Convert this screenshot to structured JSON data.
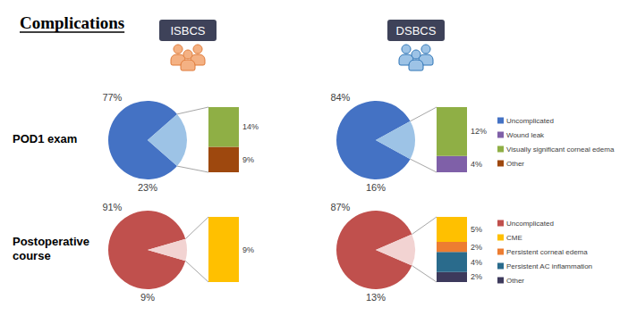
{
  "title": "Complications",
  "groups": [
    "ISBCS",
    "DSBCS"
  ],
  "rows": [
    {
      "label": "POD1 exam",
      "legend": [
        {
          "name": "Uncomplicated",
          "color": "#4472c4"
        },
        {
          "name": "Wound leak",
          "color": "#7f60a8"
        },
        {
          "name": "Visually significant corneal edema",
          "color": "#8faf45"
        },
        {
          "name": "Other",
          "color": "#9e480e"
        }
      ]
    },
    {
      "label": "Postoperative course",
      "legend": [
        {
          "name": "Uncomplicated",
          "color": "#c0504d"
        },
        {
          "name": "CME",
          "color": "#ffc000"
        },
        {
          "name": "Persistent corneal edema",
          "color": "#ed7d31"
        },
        {
          "name": "Persistent AC inflammation",
          "color": "#2a6b8c"
        },
        {
          "name": "Other",
          "color": "#3d3a5c"
        }
      ]
    }
  ],
  "chart_data": [
    {
      "type": "pie",
      "group": "ISBCS",
      "row": "POD1 exam",
      "categories": [
        "Uncomplicated",
        null
      ],
      "values": [
        77,
        23
      ],
      "value_labels": [
        "77%",
        "23%"
      ],
      "colors": [
        "#4472c4",
        "#9dc3e6"
      ],
      "data_labels": true,
      "breakdown": {
        "type": "bar",
        "stacked": true,
        "data_labels": true,
        "tick_labels": false,
        "ylim": [
          0,
          23
        ],
        "series": [
          {
            "name": "Other",
            "color": "#9e480e",
            "values": [
              9
            ],
            "value_labels": [
              "9%"
            ]
          },
          {
            "name": "Visually significant corneal edema",
            "color": "#8faf45",
            "values": [
              14
            ],
            "value_labels": [
              "14%"
            ]
          }
        ]
      }
    },
    {
      "type": "pie",
      "group": "DSBCS",
      "row": "POD1 exam",
      "categories": [
        "Uncomplicated",
        null
      ],
      "values": [
        84,
        16
      ],
      "value_labels": [
        "84%",
        "16%"
      ],
      "colors": [
        "#4472c4",
        "#9dc3e6"
      ],
      "data_labels": true,
      "breakdown": {
        "type": "bar",
        "stacked": true,
        "data_labels": true,
        "tick_labels": false,
        "ylim": [
          0,
          16
        ],
        "series": [
          {
            "name": "Wound leak",
            "color": "#7f60a8",
            "values": [
              4
            ],
            "value_labels": [
              "4%"
            ]
          },
          {
            "name": "Visually significant corneal edema",
            "color": "#8faf45",
            "values": [
              12
            ],
            "value_labels": [
              "12%"
            ]
          }
        ]
      }
    },
    {
      "type": "pie",
      "group": "ISBCS",
      "row": "Postoperative course",
      "categories": [
        "Uncomplicated",
        null
      ],
      "values": [
        91,
        9
      ],
      "value_labels": [
        "91%",
        "9%"
      ],
      "colors": [
        "#c0504d",
        "#f2d3d2"
      ],
      "data_labels": true,
      "breakdown": {
        "type": "bar",
        "stacked": true,
        "data_labels": true,
        "tick_labels": false,
        "ylim": [
          0,
          9
        ],
        "series": [
          {
            "name": "CME",
            "color": "#ffc000",
            "values": [
              9
            ],
            "value_labels": [
              "9%"
            ]
          }
        ]
      }
    },
    {
      "type": "pie",
      "group": "DSBCS",
      "row": "Postoperative course",
      "categories": [
        "Uncomplicated",
        null
      ],
      "values": [
        87,
        13
      ],
      "value_labels": [
        "87%",
        "13%"
      ],
      "colors": [
        "#c0504d",
        "#f2d3d2"
      ],
      "data_labels": true,
      "breakdown": {
        "type": "bar",
        "stacked": true,
        "data_labels": true,
        "tick_labels": false,
        "ylim": [
          0,
          13
        ],
        "series": [
          {
            "name": "Other",
            "color": "#3d3a5c",
            "values": [
              2
            ],
            "value_labels": [
              "2%"
            ]
          },
          {
            "name": "Persistent AC inflammation",
            "color": "#2a6b8c",
            "values": [
              4
            ],
            "value_labels": [
              "4%"
            ]
          },
          {
            "name": "Persistent corneal edema",
            "color": "#ed7d31",
            "values": [
              2
            ],
            "value_labels": [
              "2%"
            ]
          },
          {
            "name": "CME",
            "color": "#ffc000",
            "values": [
              5
            ],
            "value_labels": [
              "5%"
            ]
          }
        ]
      }
    }
  ]
}
